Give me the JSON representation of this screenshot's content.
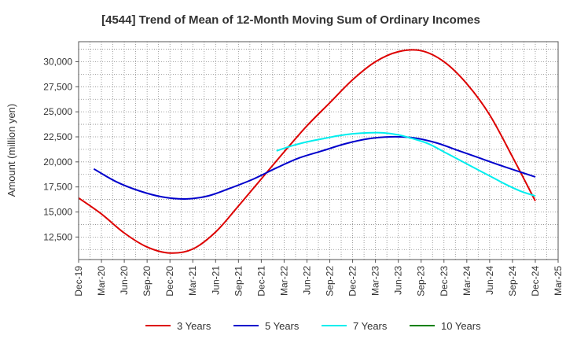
{
  "chart_data": {
    "type": "line",
    "title": "[4544]  Trend of Mean of 12-Month Moving Sum of Ordinary Incomes",
    "xlabel": "",
    "ylabel": "Amount (million yen)",
    "ylim": [
      10250,
      32000
    ],
    "y_ticks": [
      12500,
      15000,
      17500,
      20000,
      22500,
      25000,
      27500,
      30000
    ],
    "y_tick_labels": [
      "12,500",
      "15,000",
      "17,500",
      "20,000",
      "22,500",
      "25,000",
      "27,500",
      "30,000"
    ],
    "x_tick_labels": [
      "Dec-19",
      "Mar-20",
      "Jun-20",
      "Sep-20",
      "Dec-20",
      "Mar-21",
      "Jun-21",
      "Sep-21",
      "Dec-21",
      "Mar-22",
      "Jun-22",
      "Sep-22",
      "Dec-22",
      "Mar-23",
      "Jun-23",
      "Sep-23",
      "Dec-23",
      "Mar-24",
      "Jun-24",
      "Sep-24",
      "Dec-24",
      "Mar-25"
    ],
    "x_range_months": [
      0,
      63
    ],
    "grid": true,
    "legend_position": "bottom",
    "series": [
      {
        "name": "3 Years",
        "color": "#dd0000",
        "x_months": [
          0,
          3,
          6,
          9,
          12,
          15,
          18,
          21,
          24,
          27,
          30,
          33,
          36,
          39,
          42,
          45,
          48,
          51,
          54,
          57,
          60
        ],
        "values": [
          16400,
          14800,
          12900,
          11500,
          10900,
          11300,
          13000,
          15600,
          18300,
          21000,
          23600,
          25900,
          28200,
          30000,
          31000,
          31100,
          30000,
          27800,
          24700,
          20500,
          16100
        ]
      },
      {
        "name": "5 Years",
        "color": "#0000cc",
        "x_months": [
          2,
          5,
          8,
          11,
          14,
          17,
          20,
          23,
          26,
          29,
          32,
          35,
          38,
          41,
          44,
          47,
          50,
          53,
          56,
          60
        ],
        "values": [
          19300,
          18000,
          17100,
          16500,
          16300,
          16600,
          17400,
          18300,
          19400,
          20400,
          21100,
          21800,
          22300,
          22500,
          22400,
          21900,
          21100,
          20300,
          19500,
          18500
        ]
      },
      {
        "name": "7 Years",
        "color": "#00eeee",
        "x_months": [
          26,
          28,
          30,
          32,
          34,
          36,
          38,
          40,
          42,
          44,
          46,
          48,
          50,
          52,
          54,
          56,
          58,
          60
        ],
        "values": [
          21100,
          21600,
          22000,
          22300,
          22600,
          22800,
          22900,
          22900,
          22700,
          22300,
          21800,
          21000,
          20200,
          19400,
          18600,
          17800,
          17100,
          16600
        ]
      },
      {
        "name": "10 Years",
        "color": "#008000",
        "x_months": [],
        "values": []
      }
    ]
  }
}
